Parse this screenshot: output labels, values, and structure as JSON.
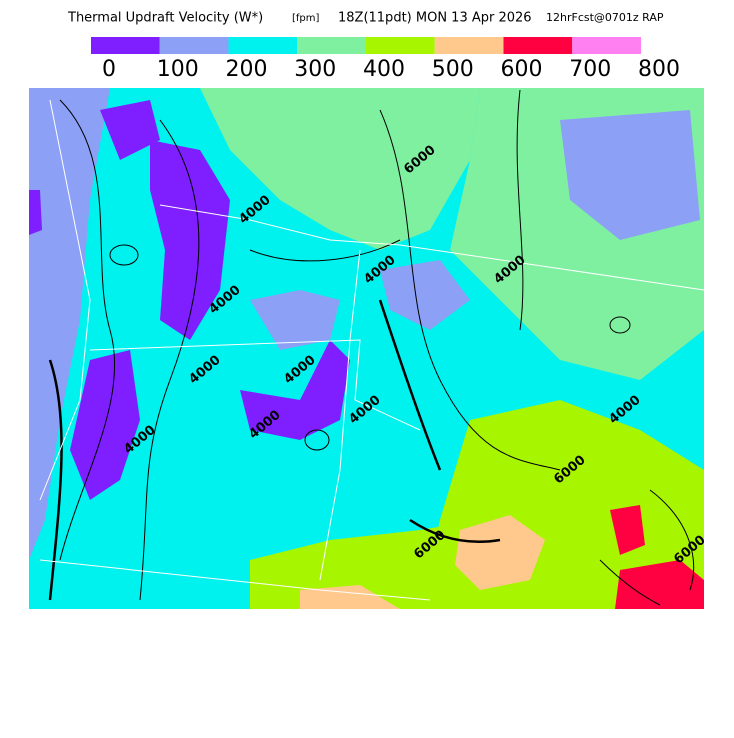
{
  "header": {
    "title": "Thermal Updraft Velocity (W*)",
    "units": "[fpm]",
    "valid_time": "18Z(11pdt) MON 13 Apr 2026",
    "run": "12hrFcst@0701z RAP"
  },
  "colorbar": {
    "labels": [
      0,
      100,
      200,
      300,
      400,
      500,
      600,
      700,
      800
    ],
    "colors": [
      "#7f1fff",
      "#8ca0f5",
      "#00f2ee",
      "#7ff0a0",
      "#a8f500",
      "#ffc88c",
      "#ff0040",
      "#ff80f0"
    ]
  },
  "contour_labels": [
    "4000",
    "4000",
    "4000",
    "4000",
    "4000",
    "4000",
    "4000",
    "4000",
    "4000",
    "6000",
    "6000",
    "6000",
    "4000",
    "6000"
  ]
}
